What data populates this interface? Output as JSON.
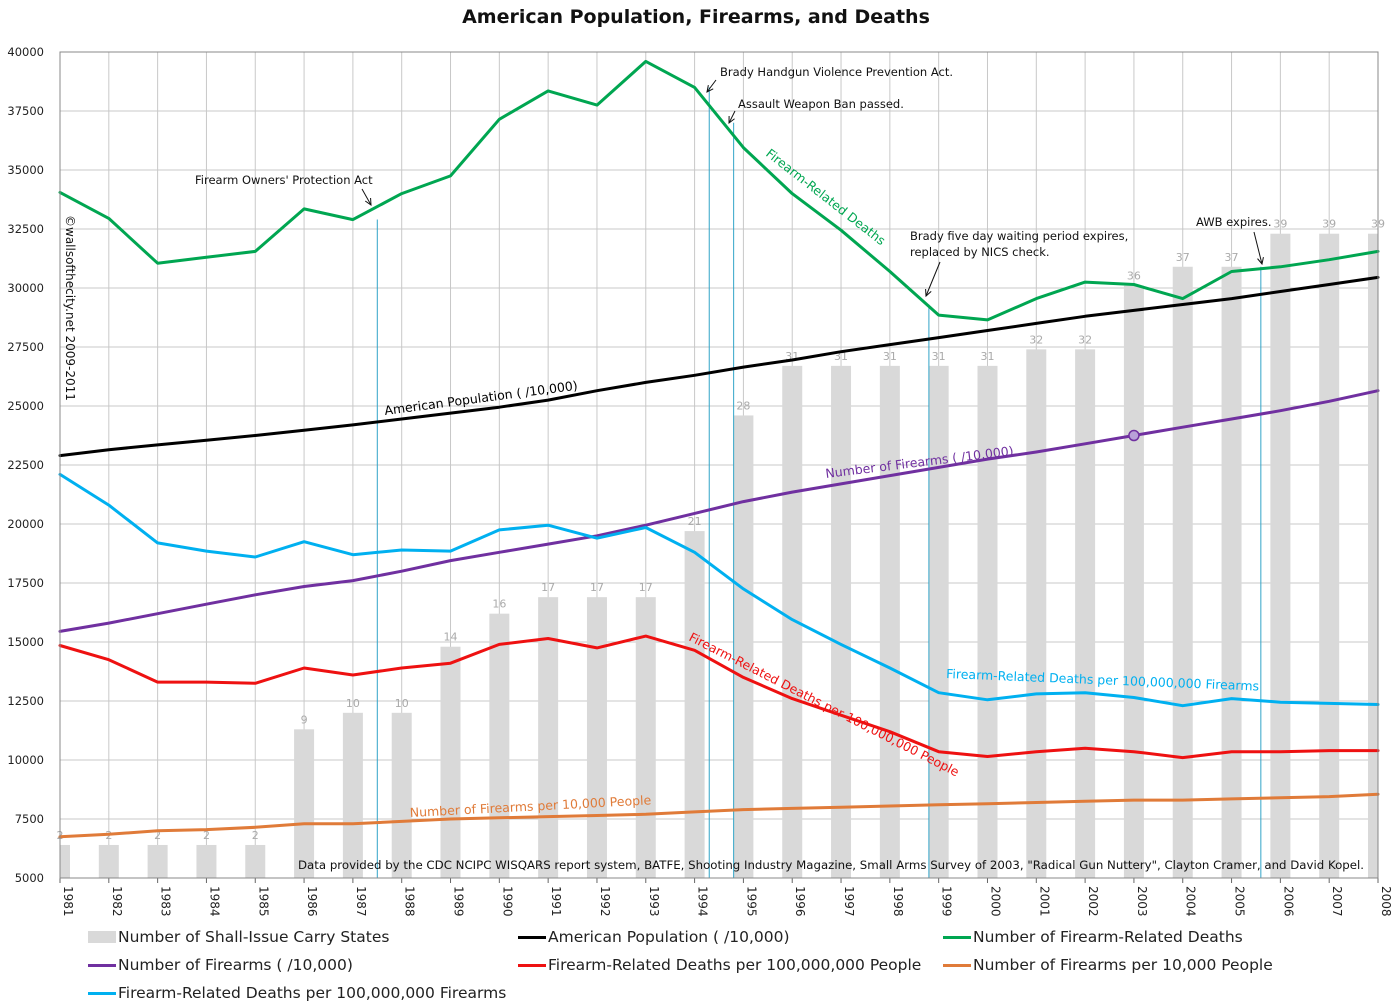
{
  "chart_data": {
    "type": "bar+line",
    "title": "American Population, Firearms, and Deaths",
    "ylim": [
      5000,
      40000
    ],
    "yticks": [
      5000,
      7500,
      10000,
      12500,
      15000,
      17500,
      20000,
      22500,
      25000,
      27500,
      30000,
      32500,
      35000,
      37500,
      40000
    ],
    "categories": [
      "1981",
      "1982",
      "1983",
      "1984",
      "1985",
      "1986",
      "1987",
      "1988",
      "1989",
      "1990",
      "1991",
      "1992",
      "1993",
      "1994",
      "1995",
      "1996",
      "1997",
      "1998",
      "1999",
      "2000",
      "2001",
      "2002",
      "2003",
      "2004",
      "2005",
      "2006",
      "2007",
      "2008"
    ],
    "grid": true,
    "legend_position": "bottom",
    "bars": {
      "name": "Number of Shall-Issue Carry States",
      "color": "#d9d9d9",
      "label_color": "#aaaaaa",
      "labels": [
        "2",
        "2",
        "2",
        "2",
        "2",
        "9",
        "10",
        "10",
        "14",
        "16",
        "17",
        "17",
        "17",
        "21",
        "28",
        "31",
        "31",
        "31",
        "31",
        "31",
        "32",
        "32",
        "36",
        "37",
        "37",
        "39",
        "39",
        "39"
      ],
      "values": [
        6400,
        6400,
        6400,
        6400,
        6400,
        11300,
        12000,
        12000,
        14800,
        16200,
        16900,
        16900,
        16900,
        19700,
        24600,
        26700,
        26700,
        26700,
        26700,
        26700,
        27400,
        27400,
        30100,
        30900,
        30900,
        32300,
        32300,
        32300
      ]
    },
    "series": [
      {
        "name": "American Population ( /10,000)",
        "color": "#000000",
        "values": [
          22900,
          23150,
          23350,
          23550,
          23750,
          23970,
          24200,
          24450,
          24700,
          24950,
          25250,
          25650,
          26000,
          26300,
          26650,
          26950,
          27300,
          27600,
          27900,
          28200,
          28500,
          28800,
          29050,
          29300,
          29550,
          29850,
          30150,
          30450
        ]
      },
      {
        "name": "Number of Firearm-Related Deaths",
        "color": "#00a651",
        "values": [
          34050,
          32950,
          31050,
          31300,
          31550,
          33350,
          32900,
          34000,
          34750,
          37150,
          38350,
          37750,
          39600,
          38500,
          35950,
          34000,
          32450,
          30700,
          28850,
          28650,
          29550,
          30250,
          30150,
          29550,
          30700,
          30900,
          31200,
          31550
        ]
      },
      {
        "name": "Number of Firearms ( /10,000)",
        "color": "#7030a0",
        "values": [
          15450,
          15800,
          16200,
          16600,
          17000,
          17350,
          17600,
          18000,
          18450,
          18800,
          19150,
          19500,
          19950,
          20450,
          20950,
          21350,
          21700,
          22050,
          22400,
          22750,
          23050,
          23400,
          23750,
          24100,
          24450,
          24800,
          25200,
          25650
        ]
      },
      {
        "name": "Firearm-Related Deaths per 100,000,000 People",
        "color": "#ee1111",
        "values": [
          14850,
          14250,
          13300,
          13300,
          13250,
          13900,
          13600,
          13900,
          14100,
          14900,
          15150,
          14750,
          15250,
          14650,
          13500,
          12600,
          11900,
          11200,
          10350,
          10150,
          10350,
          10500,
          10350,
          10100,
          10350,
          10350,
          10400,
          10400
        ]
      },
      {
        "name": "Number of Firearms per 10,000 People",
        "color": "#e07b39",
        "values": [
          6750,
          6850,
          7000,
          7050,
          7150,
          7300,
          7300,
          7400,
          7500,
          7550,
          7600,
          7650,
          7700,
          7800,
          7900,
          7950,
          8000,
          8050,
          8100,
          8150,
          8200,
          8250,
          8300,
          8300,
          8350,
          8400,
          8450,
          8550
        ]
      },
      {
        "name": "Firearm-Related Deaths per 100,000,000 Firearms",
        "color": "#00b0f0",
        "values": [
          22100,
          20800,
          19200,
          18850,
          18600,
          19250,
          18700,
          18900,
          18850,
          19750,
          19950,
          19400,
          19850,
          18800,
          17250,
          15950,
          14900,
          13900,
          12850,
          12550,
          12800,
          12850,
          12650,
          12300,
          12600,
          12450,
          12400,
          12350
        ]
      }
    ],
    "event_lines": [
      {
        "label": "Firearm Owners' Protection Act",
        "x": 1987.5,
        "top": 32900
      },
      {
        "label": "Brady Handgun Violence Prevention Act.",
        "x": 1994.3,
        "top": 38500
      },
      {
        "label": "Assault Weapon Ban passed.",
        "x": 1994.8,
        "top": 37000
      },
      {
        "label": "Brady five day waiting period expires,",
        "label2": "replaced by NICS check.",
        "x": 1998.8,
        "top": 29300
      },
      {
        "label": "AWB expires.",
        "x": 2005.6,
        "top": 30900
      }
    ],
    "series_labels": [
      {
        "text": "Firearm-Related Deaths",
        "color": "#00a651"
      },
      {
        "text": "American Population ( /10,000)",
        "color": "#000000"
      },
      {
        "text": "Number of Firearms ( /10,000)",
        "color": "#7030a0"
      },
      {
        "text": "Firearm-Related Deaths per 100,000,000 People",
        "color": "#ee1111"
      },
      {
        "text": "Firearm-Related Deaths per 100,000,000 Firearms",
        "color": "#00b0f0"
      },
      {
        "text": "Number of Firearms per 10,000 People",
        "color": "#e07b39"
      }
    ],
    "copyright": "©wallsofthecity.net 2009-2011",
    "source_note": "Data provided by the CDC NCIPC WISQARS report system, BATFE, Shooting Industry Magazine, Small Arms Survey of 2003, \"Radical Gun Nuttery\", Clayton Cramer, and David Kopel."
  }
}
